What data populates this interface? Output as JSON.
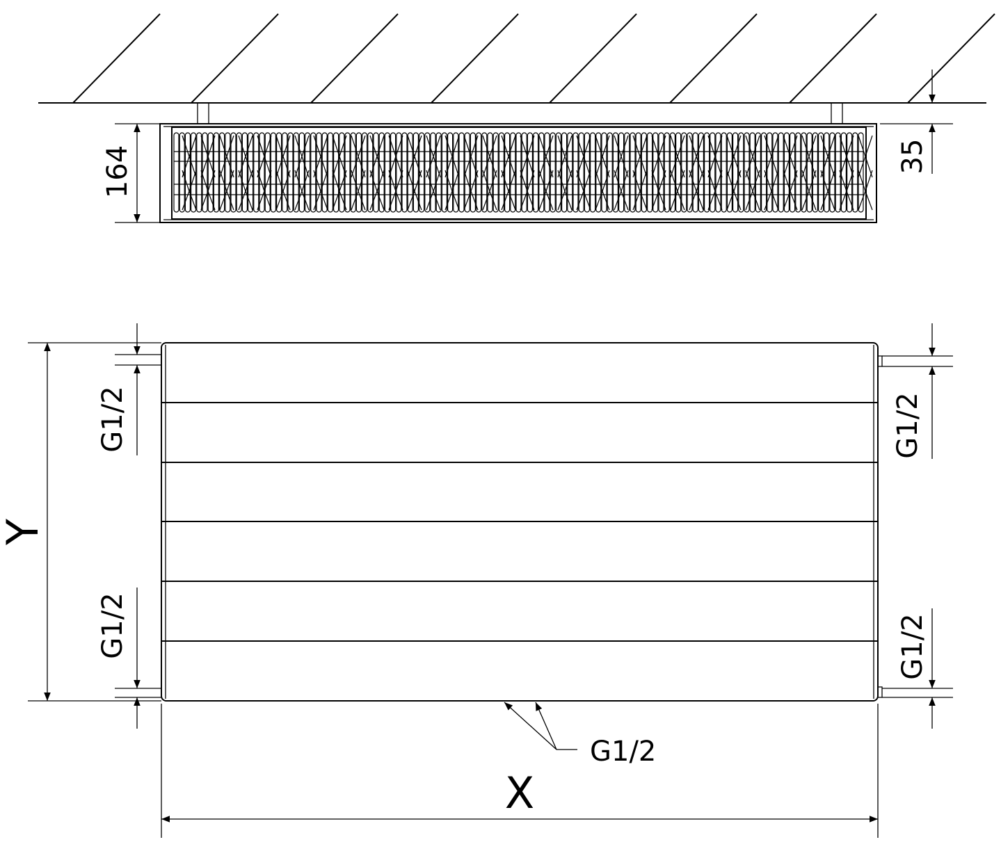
{
  "top_view": {
    "depth_label": "164",
    "wall_gap_label": "35"
  },
  "front_view": {
    "height_label": "Y",
    "width_label": "X",
    "connection_left_top": "G1/2",
    "connection_left_bottom": "G1/2",
    "connection_right_top": "G1/2",
    "connection_right_bottom": "G1/2",
    "connection_bottom": "G1/2"
  },
  "colors": {
    "line": "#000000",
    "background": "#ffffff"
  }
}
